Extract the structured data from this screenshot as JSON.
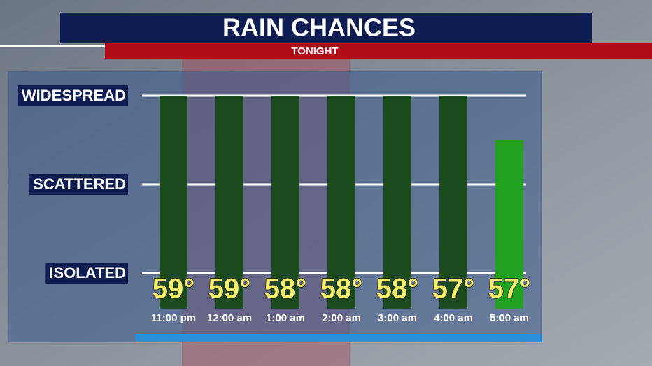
{
  "chart_data": {
    "type": "bar",
    "title": "RAIN CHANCES",
    "subtitle": "TONIGHT",
    "categories": [
      "11:00 pm",
      "12:00 am",
      "1:00 am",
      "2:00 am",
      "3:00 am",
      "4:00 am",
      "5:00 am"
    ],
    "values": [
      3,
      3,
      3,
      3,
      3,
      3,
      2.5
    ],
    "colors": [
      "#1a4a1e",
      "#1a4a1e",
      "#1a4a1e",
      "#1a4a1e",
      "#1a4a1e",
      "#1a4a1e",
      "#22a022"
    ],
    "temperature_labels": [
      "59°",
      "59°",
      "58°",
      "58°",
      "58°",
      "57°",
      "57°"
    ],
    "ylim": [
      0.6,
      3.25
    ],
    "yticks": [
      {
        "value": 1,
        "label": "ISOLATED"
      },
      {
        "value": 2,
        "label": "SCATTERED"
      },
      {
        "value": 3,
        "label": "WIDESPREAD"
      }
    ],
    "grid": true
  }
}
